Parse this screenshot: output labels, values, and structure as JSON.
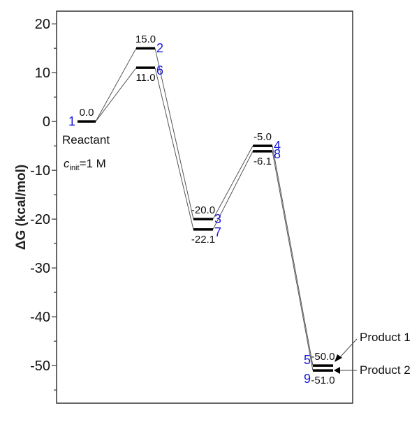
{
  "chart_data": {
    "type": "line",
    "subtype": "energy-level-diagram",
    "ylabel": "ΔG (kcal/mol)",
    "ylim": [
      -57.7,
      22.6
    ],
    "yticks": [
      20,
      10,
      0,
      -10,
      -20,
      -30,
      -40,
      -50
    ],
    "ytick_labels": [
      "20",
      "10",
      "0",
      "-10",
      "-20",
      "-30",
      "-40",
      "-50"
    ],
    "grid": false,
    "steps": 5,
    "series": [
      {
        "name": "Product 1 pathway",
        "values": [
          0.0,
          15.0,
          -20.0,
          -5.0,
          -50.0
        ],
        "value_labels": [
          "0.0",
          "15.0",
          "-20.0",
          "-5.0",
          "-50.0"
        ],
        "state_labels": [
          "1",
          "2",
          "3",
          "4",
          "5"
        ]
      },
      {
        "name": "Product 2 pathway",
        "values": [
          0.0,
          11.0,
          -22.1,
          -6.1,
          -51.0
        ],
        "value_labels": [
          "",
          "11.0",
          "-22.1",
          "-6.1",
          "-51.0"
        ],
        "state_labels": [
          "",
          "6",
          "7",
          "8",
          "9"
        ]
      }
    ],
    "annotations": {
      "reactant": "Reactant",
      "cinit_prefix": "c",
      "cinit_sub": "init",
      "cinit_suffix": "=1 M",
      "product1": "Product 1",
      "product2": "Product 2"
    },
    "colors": {
      "level": "#000000",
      "connector": "#555555",
      "state_label": "#1a1adc"
    }
  }
}
